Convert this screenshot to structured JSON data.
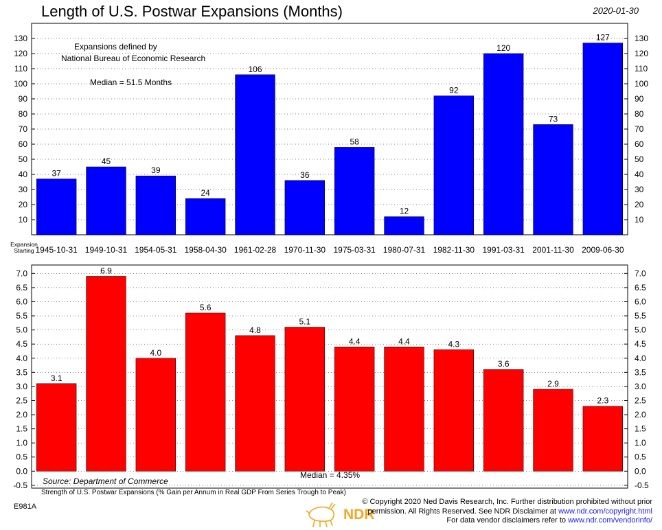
{
  "header": {
    "title": "Length of U.S. Postwar Expansions (Months)",
    "date": "2020-01-30"
  },
  "chart_data": [
    {
      "type": "bar",
      "title": "Length of U.S. Postwar Expansions (Months)",
      "categories": [
        "1945-10-31",
        "1949-10-31",
        "1954-05-31",
        "1958-04-30",
        "1961-02-28",
        "1970-11-30",
        "1975-03-31",
        "1980-07-31",
        "1982-11-30",
        "1991-03-31",
        "2001-11-30",
        "2009-06-30"
      ],
      "values": [
        37,
        45,
        39,
        24,
        106,
        36,
        58,
        12,
        92,
        120,
        73,
        127
      ],
      "labels": [
        "37",
        "45",
        "39",
        "24",
        "106",
        "36",
        "58",
        "12",
        "92",
        "120",
        "73",
        "127"
      ],
      "ylim": [
        0,
        140
      ],
      "yticks": [
        10,
        20,
        30,
        40,
        50,
        60,
        70,
        80,
        90,
        100,
        110,
        120,
        130
      ],
      "color": "#0000ff",
      "xlabel": "Expansion Starting",
      "annotations": {
        "defined_line1": "Expansions defined by",
        "defined_line2": "National Bureau of Economic Research",
        "median": "Median = 51.5 Months"
      }
    },
    {
      "type": "bar",
      "title": "Strength of U.S. Postwar Expansions (% Gain per Annum in Real GDP From Series Trough to Peak)",
      "categories": [
        "1945-10-31",
        "1949-10-31",
        "1954-05-31",
        "1958-04-30",
        "1961-02-28",
        "1970-11-30",
        "1975-03-31",
        "1980-07-31",
        "1982-11-30",
        "1991-03-31",
        "2001-11-30",
        "2009-06-30"
      ],
      "values": [
        3.1,
        6.9,
        4.0,
        5.6,
        4.8,
        5.1,
        4.4,
        4.4,
        4.3,
        3.6,
        2.9,
        2.3
      ],
      "labels": [
        "3.1",
        "6.9",
        "4.0",
        "5.6",
        "4.8",
        "5.1",
        "4.4",
        "4.4",
        "4.3",
        "3.6",
        "2.9",
        "2.3"
      ],
      "ylim": [
        -0.6,
        7.3
      ],
      "yticks": [
        "-0.5",
        "0.0",
        "0.5",
        "1.0",
        "1.5",
        "2.0",
        "2.5",
        "3.0",
        "3.5",
        "4.0",
        "4.5",
        "5.0",
        "5.5",
        "6.0",
        "6.5",
        "7.0"
      ],
      "color": "#ff0000",
      "annotations": {
        "source": "Source:  Department of Commerce",
        "median": "Median = 4.35%"
      }
    }
  ],
  "footer": {
    "code": "E981A",
    "logo_text": "NDR",
    "copyright_line1": "© Copyright 2020 Ned Davis Research, Inc. Further distribution prohibited without prior",
    "copyright_line2_prefix": "permission. All Rights Reserved. See NDR Disclaimer at ",
    "copyright_line2_url": "www.ndr.com/copyright.html",
    "copyright_line3_prefix": "For data vendor disclaimers refer to ",
    "copyright_line3_url": "www.ndr.com/vendorinfo/"
  }
}
